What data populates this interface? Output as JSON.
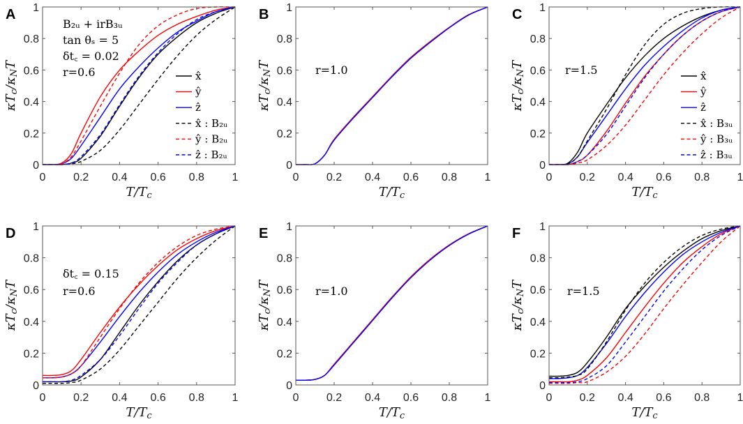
{
  "chart_data": {
    "type": "line",
    "x": [
      0,
      0.05,
      0.1,
      0.15,
      0.2,
      0.3,
      0.4,
      0.5,
      0.6,
      0.7,
      0.8,
      0.9,
      1
    ],
    "xlim": [
      0,
      1
    ],
    "ylim": [
      0,
      1
    ],
    "xticks": [
      "0",
      "0.2",
      "0.4",
      "0.6",
      "0.8",
      "1"
    ],
    "yticks": [
      "0",
      "0.2",
      "0.4",
      "0.6",
      "0.8",
      "1"
    ],
    "xlabel_parts": [
      [
        "T",
        ""
      ],
      [
        "/T",
        ""
      ],
      [
        "c",
        "sub"
      ]
    ],
    "ylabel_parts": [
      [
        "κT",
        ""
      ],
      [
        "c",
        "sub"
      ],
      [
        "/κ",
        ""
      ],
      [
        "N",
        "sub"
      ],
      [
        "T",
        ""
      ]
    ],
    "colors": {
      "x": "#000000",
      "y": "#ff0000",
      "z": "#0000ff"
    },
    "panels": [
      {
        "label": "A",
        "annotations": [
          "B₂ᵤ + irB₃ᵤ",
          "tan θₛ = 5",
          "δt꜀ = 0.02",
          "r=0.6"
        ],
        "legend": [
          "x̂",
          "ŷ",
          "ẑ",
          "x̂ : B₂ᵤ",
          "ŷ : B₂ᵤ",
          "ẑ : B₂ᵤ"
        ],
        "series": [
          {
            "name": "x̂",
            "color": "x",
            "dash": false,
            "values": [
              0,
              0,
              0,
              0.01,
              0.04,
              0.18,
              0.37,
              0.55,
              0.7,
              0.81,
              0.9,
              0.96,
              1
            ]
          },
          {
            "name": "ŷ",
            "color": "y",
            "dash": false,
            "values": [
              0,
              0,
              0.01,
              0.07,
              0.2,
              0.43,
              0.6,
              0.72,
              0.82,
              0.89,
              0.94,
              0.98,
              1
            ]
          },
          {
            "name": "ẑ",
            "color": "z",
            "dash": false,
            "values": [
              0,
              0,
              0.005,
              0.04,
              0.12,
              0.3,
              0.48,
              0.62,
              0.74,
              0.84,
              0.91,
              0.97,
              1
            ]
          },
          {
            "name": "x̂ : B₂ᵤ",
            "color": "x",
            "dash": true,
            "values": [
              0,
              0,
              0,
              0.005,
              0.02,
              0.09,
              0.22,
              0.38,
              0.54,
              0.69,
              0.82,
              0.92,
              1
            ]
          },
          {
            "name": "ŷ : B₂ᵤ",
            "color": "y",
            "dash": true,
            "values": [
              0,
              0,
              0.005,
              0.05,
              0.15,
              0.37,
              0.58,
              0.76,
              0.88,
              0.95,
              0.99,
              1,
              1
            ]
          },
          {
            "name": "ẑ : B₂ᵤ",
            "color": "z",
            "dash": true,
            "values": [
              0,
              0,
              0,
              0.01,
              0.05,
              0.19,
              0.38,
              0.56,
              0.71,
              0.83,
              0.92,
              0.97,
              1
            ]
          }
        ]
      },
      {
        "label": "B",
        "annotations": [
          "r=1.0"
        ],
        "legend": [],
        "series": [
          {
            "name": "x̂",
            "color": "x",
            "dash": false,
            "values": [
              0,
              0,
              0.005,
              0.06,
              0.16,
              0.3,
              0.43,
              0.56,
              0.68,
              0.78,
              0.87,
              0.95,
              1
            ]
          },
          {
            "name": "ŷ",
            "color": "y",
            "dash": false,
            "values": [
              0,
              0,
              0.005,
              0.06,
              0.16,
              0.3,
              0.43,
              0.56,
              0.68,
              0.78,
              0.87,
              0.95,
              1
            ]
          },
          {
            "name": "ẑ",
            "color": "z",
            "dash": false,
            "values": [
              0,
              0,
              0.005,
              0.06,
              0.155,
              0.295,
              0.425,
              0.555,
              0.675,
              0.775,
              0.868,
              0.948,
              1
            ]
          }
        ]
      },
      {
        "label": "C",
        "annotations": [
          "r=1.5"
        ],
        "legend": [
          "x̂",
          "ŷ",
          "ẑ",
          "x̂ : B₃ᵤ",
          "ŷ : B₃ᵤ",
          "ẑ : B₃ᵤ"
        ],
        "series": [
          {
            "name": "x̂",
            "color": "x",
            "dash": false,
            "values": [
              0,
              0,
              0.01,
              0.08,
              0.2,
              0.38,
              0.55,
              0.69,
              0.8,
              0.88,
              0.94,
              0.98,
              1
            ]
          },
          {
            "name": "ŷ",
            "color": "y",
            "dash": false,
            "values": [
              0,
              0,
              0,
              0.02,
              0.06,
              0.21,
              0.39,
              0.56,
              0.7,
              0.82,
              0.91,
              0.97,
              1
            ]
          },
          {
            "name": "ẑ",
            "color": "z",
            "dash": false,
            "values": [
              0,
              0,
              0.005,
              0.05,
              0.14,
              0.31,
              0.48,
              0.63,
              0.75,
              0.85,
              0.93,
              0.98,
              1
            ]
          },
          {
            "name": "x̂ : B₃ᵤ",
            "color": "x",
            "dash": true,
            "values": [
              0,
              0,
              0.005,
              0.05,
              0.15,
              0.35,
              0.57,
              0.76,
              0.89,
              0.96,
              0.99,
              1,
              1
            ]
          },
          {
            "name": "ŷ : B₃ᵤ",
            "color": "y",
            "dash": true,
            "values": [
              0,
              0,
              0,
              0.01,
              0.03,
              0.12,
              0.25,
              0.41,
              0.57,
              0.71,
              0.83,
              0.93,
              1
            ]
          },
          {
            "name": "ẑ : B₃ᵤ",
            "color": "z",
            "dash": true,
            "values": [
              0,
              0,
              0,
              0.02,
              0.06,
              0.19,
              0.37,
              0.55,
              0.7,
              0.82,
              0.91,
              0.97,
              1
            ]
          }
        ]
      },
      {
        "label": "D",
        "annotations": [
          "δt꜀ = 0.15",
          "r=0.6"
        ],
        "legend": [],
        "series": [
          {
            "name": "x̂",
            "color": "x",
            "dash": false,
            "values": [
              0.02,
              0.02,
              0.02,
              0.025,
              0.05,
              0.16,
              0.33,
              0.5,
              0.65,
              0.78,
              0.88,
              0.95,
              1
            ]
          },
          {
            "name": "ŷ",
            "color": "y",
            "dash": false,
            "values": [
              0.06,
              0.06,
              0.065,
              0.09,
              0.16,
              0.33,
              0.49,
              0.63,
              0.75,
              0.85,
              0.92,
              0.97,
              1
            ]
          },
          {
            "name": "ẑ",
            "color": "z",
            "dash": false,
            "values": [
              0.045,
              0.045,
              0.05,
              0.07,
              0.12,
              0.27,
              0.43,
              0.58,
              0.71,
              0.82,
              0.9,
              0.96,
              1
            ]
          },
          {
            "name": "x̂ : B₂ᵤ",
            "color": "x",
            "dash": true,
            "values": [
              0.01,
              0.01,
              0.01,
              0.015,
              0.03,
              0.1,
              0.22,
              0.37,
              0.52,
              0.67,
              0.8,
              0.91,
              1
            ]
          },
          {
            "name": "ŷ : B₂ᵤ",
            "color": "y",
            "dash": true,
            "values": [
              0.045,
              0.045,
              0.05,
              0.07,
              0.12,
              0.3,
              0.48,
              0.64,
              0.77,
              0.87,
              0.94,
              0.98,
              1
            ]
          },
          {
            "name": "ẑ : B₂ᵤ",
            "color": "z",
            "dash": true,
            "values": [
              0.02,
              0.02,
              0.02,
              0.03,
              0.06,
              0.16,
              0.31,
              0.48,
              0.64,
              0.77,
              0.88,
              0.95,
              1
            ]
          }
        ]
      },
      {
        "label": "E",
        "annotations": [
          "r=1.0"
        ],
        "legend": [],
        "series": [
          {
            "name": "x̂",
            "color": "x",
            "dash": false,
            "values": [
              0.03,
              0.03,
              0.035,
              0.06,
              0.13,
              0.27,
              0.41,
              0.55,
              0.68,
              0.79,
              0.88,
              0.95,
              1
            ]
          },
          {
            "name": "ŷ",
            "color": "y",
            "dash": false,
            "values": [
              0.03,
              0.03,
              0.035,
              0.06,
              0.13,
              0.27,
              0.41,
              0.55,
              0.68,
              0.79,
              0.88,
              0.95,
              1
            ]
          },
          {
            "name": "ẑ",
            "color": "z",
            "dash": false,
            "values": [
              0.03,
              0.03,
              0.035,
              0.06,
              0.125,
              0.265,
              0.405,
              0.545,
              0.675,
              0.785,
              0.877,
              0.948,
              1
            ]
          }
        ]
      },
      {
        "label": "F",
        "annotations": [
          "r=1.5"
        ],
        "legend": [],
        "series": [
          {
            "name": "x̂",
            "color": "x",
            "dash": false,
            "values": [
              0.055,
              0.055,
              0.06,
              0.08,
              0.14,
              0.3,
              0.48,
              0.62,
              0.74,
              0.84,
              0.92,
              0.97,
              1
            ]
          },
          {
            "name": "ŷ",
            "color": "y",
            "dash": false,
            "values": [
              0.02,
              0.02,
              0.02,
              0.03,
              0.06,
              0.17,
              0.33,
              0.49,
              0.64,
              0.77,
              0.87,
              0.95,
              1
            ]
          },
          {
            "name": "ẑ",
            "color": "z",
            "dash": false,
            "values": [
              0.04,
              0.04,
              0.045,
              0.06,
              0.11,
              0.26,
              0.43,
              0.58,
              0.71,
              0.82,
              0.9,
              0.96,
              1
            ]
          },
          {
            "name": "x̂ : B₃ᵤ",
            "color": "x",
            "dash": true,
            "values": [
              0.045,
              0.045,
              0.05,
              0.06,
              0.1,
              0.27,
              0.47,
              0.64,
              0.77,
              0.87,
              0.94,
              0.98,
              1
            ]
          },
          {
            "name": "ŷ : B₃ᵤ",
            "color": "y",
            "dash": true,
            "values": [
              0.01,
              0.01,
              0.01,
              0.015,
              0.02,
              0.08,
              0.18,
              0.32,
              0.48,
              0.63,
              0.77,
              0.9,
              1
            ]
          },
          {
            "name": "ẑ : B₃ᵤ",
            "color": "z",
            "dash": true,
            "values": [
              0.015,
              0.015,
              0.015,
              0.02,
              0.04,
              0.12,
              0.27,
              0.43,
              0.59,
              0.73,
              0.85,
              0.94,
              1
            ]
          }
        ]
      }
    ]
  }
}
